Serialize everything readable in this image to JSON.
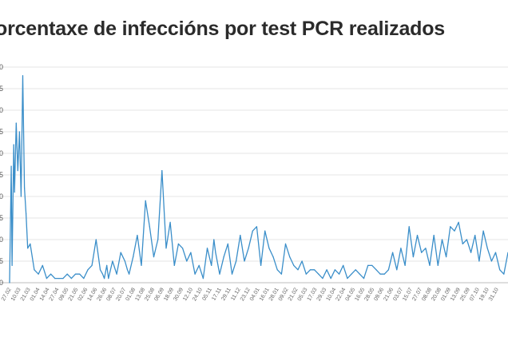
{
  "title": "orcentaxe de infeccións por test PCR realizados",
  "chart_data": {
    "type": "line",
    "title": "orcentaxe de infeccións por test PCR realizados",
    "xlabel": "",
    "ylabel": "",
    "ylim": [
      0,
      50
    ],
    "grid": true,
    "color": "#3a8ec9",
    "x_tick_labels": [
      "27.02",
      "10.03",
      "21.03",
      "01.04",
      "14.04",
      "27.04",
      "09.05",
      "21.05",
      "02.06",
      "14.06",
      "26.06",
      "08.07",
      "20.07",
      "01.08",
      "13.08",
      "25.08",
      "06.09",
      "18.09",
      "30.09",
      "12.10",
      "24.10",
      "05.11",
      "17.11",
      "29.11",
      "11.12",
      "23.12",
      "04.01",
      "16.01",
      "28.01",
      "09.02",
      "21.02",
      "05.03",
      "17.03",
      "29.03",
      "10.04",
      "22.04",
      "04.05",
      "16.05",
      "28.05",
      "09.06",
      "21.06",
      "03.07",
      "15.07",
      "27.07",
      "08.08",
      "20.08",
      "01.09",
      "13.09",
      "25.09",
      "07.10",
      "19.10",
      "31.10"
    ],
    "x": [
      0,
      2,
      3,
      5,
      6,
      8,
      10,
      12,
      14,
      16,
      18,
      20,
      22,
      25,
      30,
      35,
      40,
      45,
      50,
      55,
      60,
      65,
      70,
      75,
      80,
      85,
      90,
      95,
      100,
      105,
      110,
      113,
      115,
      118,
      120,
      125,
      130,
      135,
      140,
      143,
      145,
      150,
      155,
      160,
      165,
      170,
      175,
      180,
      185,
      190,
      195,
      200,
      205,
      210,
      215,
      220,
      225,
      230,
      235,
      240,
      245,
      248,
      250,
      255,
      260,
      265,
      270,
      275,
      280,
      285,
      290,
      295,
      300,
      305,
      310,
      315,
      320,
      325,
      330,
      335,
      340,
      345,
      350,
      355,
      360,
      365,
      370,
      375,
      380,
      385,
      390,
      395,
      400,
      405,
      410,
      415,
      420,
      425,
      430,
      435,
      440,
      445,
      450,
      455,
      460,
      465,
      470,
      475,
      480,
      485,
      490,
      495,
      500,
      505,
      510,
      515,
      520,
      525,
      530,
      535,
      540,
      545,
      550,
      555,
      560,
      565,
      570,
      575,
      580,
      585,
      590,
      595,
      600,
      605
    ],
    "values": [
      0,
      27,
      4,
      32,
      21,
      37,
      26,
      35,
      20,
      48,
      22,
      16,
      8,
      9,
      3,
      2,
      4,
      1,
      2,
      1,
      1,
      1,
      2,
      1,
      2,
      2,
      1,
      3,
      4,
      10,
      3,
      2,
      1,
      4,
      1,
      5,
      2,
      7,
      5,
      3,
      2,
      6,
      11,
      4,
      19,
      13,
      6,
      10,
      26,
      8,
      14,
      4,
      9,
      8,
      5,
      7,
      2,
      4,
      1,
      8,
      4,
      10,
      7,
      2,
      6,
      9,
      2,
      5,
      11,
      5,
      8,
      12,
      13,
      4,
      12,
      8,
      6,
      3,
      2,
      9,
      6,
      4,
      3,
      5,
      2,
      3,
      3,
      2,
      1,
      3,
      1,
      3,
      2,
      4,
      1,
      2,
      3,
      2,
      1,
      4,
      4,
      3,
      2,
      2,
      3,
      7,
      3,
      8,
      4,
      13,
      6,
      11,
      7,
      8,
      4,
      11,
      4,
      10,
      6,
      13,
      12,
      14,
      9,
      10,
      7,
      11,
      5,
      12,
      8,
      5,
      7,
      3,
      2,
      7
    ],
    "series_values_note_free": true
  }
}
